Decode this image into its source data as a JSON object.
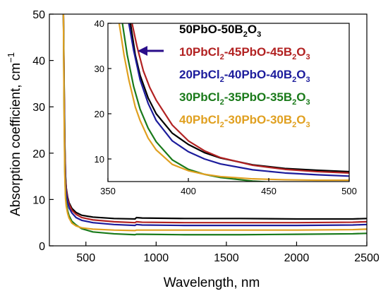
{
  "chart_data": [
    {
      "id": "main",
      "type": "line",
      "xlabel": "Wavelength, nm",
      "ylabel": "Absorption coefficient, cm",
      "ylabel_superscript": "−1",
      "xlim": [
        240,
        2500
      ],
      "ylim": [
        0,
        50
      ],
      "x_ticks": [
        500,
        1000,
        1500,
        2000,
        2500
      ],
      "x_tick_labels": [
        "500",
        "1000",
        "1500",
        "2000",
        "2500"
      ],
      "y_ticks": [
        0,
        10,
        20,
        30,
        40,
        50
      ],
      "y_tick_labels": [
        "0",
        "10",
        "20",
        "30",
        "40",
        "50"
      ],
      "grid": false,
      "series": [
        {
          "name": "50PbO-50B2O3",
          "color": "#000000",
          "x": [
            340,
            345,
            350,
            355,
            360,
            370,
            380,
            400,
            430,
            470,
            550,
            700,
            850,
            860,
            900,
            1200,
            1600,
            2000,
            2400,
            2500
          ],
          "y": [
            50,
            35,
            22,
            15,
            12.5,
            10.5,
            9.3,
            8.1,
            7.2,
            6.6,
            6.2,
            5.9,
            5.8,
            6.1,
            6.0,
            5.9,
            5.9,
            5.8,
            5.8,
            5.9
          ]
        },
        {
          "name": "10PbCl2-45PbO-45B2O3",
          "color": "#b22222",
          "x": [
            340,
            345,
            350,
            355,
            360,
            370,
            380,
            400,
            430,
            470,
            550,
            700,
            850,
            860,
            900,
            1200,
            1600,
            2000,
            2400,
            2500
          ],
          "y": [
            50,
            34,
            21,
            14.5,
            12.3,
            10.1,
            9.0,
            7.7,
            6.8,
            6.1,
            5.6,
            5.2,
            5.0,
            5.2,
            5.1,
            5.0,
            5.0,
            5.0,
            5.1,
            5.2
          ]
        },
        {
          "name": "20PbCl2-40PbO-40B2O3",
          "color": "#1c1c9c",
          "x": [
            340,
            345,
            350,
            355,
            360,
            370,
            380,
            400,
            430,
            470,
            550,
            700,
            850,
            860,
            900,
            1200,
            1600,
            2000,
            2400,
            2500
          ],
          "y": [
            50,
            32,
            19,
            13.3,
            11.5,
            9.4,
            8.2,
            7.1,
            6.1,
            5.5,
            5.0,
            4.6,
            4.4,
            4.6,
            4.5,
            4.4,
            4.4,
            4.4,
            4.5,
            4.6
          ]
        },
        {
          "name": "30PbCl2-35PbO-35B2O3",
          "color": "#1a7a1a",
          "x": [
            340,
            345,
            350,
            355,
            360,
            370,
            380,
            400,
            430,
            470,
            550,
            700,
            850,
            860,
            900,
            1200,
            1600,
            2000,
            2400,
            2500
          ],
          "y": [
            50,
            30,
            16,
            11,
            9.3,
            7.6,
            6.5,
            5.3,
            4.5,
            3.7,
            3.0,
            2.6,
            2.4,
            2.5,
            2.5,
            2.4,
            2.4,
            2.5,
            2.6,
            2.7
          ]
        },
        {
          "name": "40PbCl2-30PbO-30B2O3",
          "color": "#e0a020",
          "x": [
            340,
            345,
            350,
            355,
            360,
            370,
            380,
            400,
            430,
            470,
            550,
            700,
            850,
            860,
            900,
            1200,
            1600,
            2000,
            2400,
            2500
          ],
          "y": [
            50,
            28,
            15,
            10.2,
            8.6,
            7.0,
            6.0,
            4.9,
            4.3,
            3.9,
            3.6,
            3.4,
            3.3,
            3.4,
            3.4,
            3.4,
            3.4,
            3.4,
            3.5,
            3.6
          ]
        }
      ]
    },
    {
      "id": "inset",
      "type": "line",
      "xlabel": "",
      "ylabel": "",
      "xlim": [
        350,
        500
      ],
      "ylim": [
        5,
        40
      ],
      "x_ticks": [
        350,
        400,
        450,
        500
      ],
      "x_tick_labels": [
        "350",
        "400",
        "450",
        "500"
      ],
      "y_ticks": [
        10,
        20,
        30,
        40
      ],
      "y_tick_labels": [
        "10",
        "20",
        "30",
        "40"
      ],
      "grid": false,
      "series": [
        {
          "name": "50PbO-50B2O3",
          "color": "#000000",
          "x": [
            364,
            367,
            370,
            375,
            380,
            390,
            400,
            410,
            420,
            440,
            460,
            480,
            500
          ],
          "y": [
            40,
            33,
            28.5,
            23.5,
            20,
            15.7,
            13.2,
            11.4,
            10.2,
            8.7,
            7.9,
            7.5,
            7.2
          ]
        },
        {
          "name": "10PbCl2-45PbO-45B2O3",
          "color": "#b22222",
          "x": [
            365,
            368,
            372,
            376,
            380,
            390,
            400,
            410,
            420,
            440,
            460,
            480,
            500
          ],
          "y": [
            40,
            35,
            29.5,
            25.8,
            23,
            17.5,
            14,
            11.8,
            10.3,
            8.6,
            7.7,
            7.2,
            6.9
          ]
        },
        {
          "name": "20PbCl2-40PbO-40B2O3",
          "color": "#1c1c9c",
          "x": [
            363,
            366,
            370,
            375,
            380,
            390,
            400,
            410,
            420,
            440,
            460,
            480,
            500
          ],
          "y": [
            40,
            34,
            27.5,
            22.3,
            18.5,
            14,
            11.6,
            10,
            8.9,
            7.6,
            6.9,
            6.5,
            6.2
          ]
        },
        {
          "name": "30PbCl2-35PbO-35B2O3",
          "color": "#1a7a1a",
          "x": [
            359,
            362,
            366,
            370,
            375,
            380,
            390,
            400,
            410,
            420,
            440,
            460,
            480,
            500
          ],
          "y": [
            40,
            33,
            26,
            21,
            16.8,
            13.8,
            9.8,
            7.7,
            6.6,
            5.9,
            5.1,
            4.7,
            4.5,
            4.4
          ]
        },
        {
          "name": "40PbCl2-30PbO-30B2O3",
          "color": "#e0a020",
          "x": [
            357,
            360,
            363,
            367,
            370,
            375,
            380,
            390,
            400,
            410,
            420,
            440,
            460,
            480,
            500
          ],
          "y": [
            40,
            33,
            27.5,
            21.5,
            18.5,
            14.6,
            12,
            8.8,
            7.4,
            6.6,
            6.1,
            5.6,
            5.4,
            5.3,
            5.3
          ]
        }
      ]
    }
  ],
  "legend": {
    "placement": "top-right",
    "entries": [
      {
        "prefix": "50PbO-50B",
        "sub": "2",
        "suffix": "O",
        "sub2": "3",
        "color": "#000000",
        "parts": [
          [
            "50PbO-50B",
            false
          ],
          [
            "2",
            true
          ],
          [
            "O",
            false
          ],
          [
            "3",
            true
          ]
        ]
      },
      {
        "color": "#b22222",
        "parts": [
          [
            "10PbCl",
            false
          ],
          [
            "2",
            true
          ],
          [
            "-45PbO-45B",
            false
          ],
          [
            "2",
            true
          ],
          [
            "O",
            false
          ],
          [
            "3",
            true
          ]
        ]
      },
      {
        "color": "#1c1c9c",
        "parts": [
          [
            "20PbCl",
            false
          ],
          [
            "2",
            true
          ],
          [
            "-40PbO-40B",
            false
          ],
          [
            "2",
            true
          ],
          [
            "O",
            false
          ],
          [
            "3",
            true
          ]
        ]
      },
      {
        "color": "#1a7a1a",
        "parts": [
          [
            "30PbCl",
            false
          ],
          [
            "2",
            true
          ],
          [
            "-35PbO-35B",
            false
          ],
          [
            "2",
            true
          ],
          [
            "O",
            false
          ],
          [
            "3",
            true
          ]
        ]
      },
      {
        "color": "#e0a020",
        "parts": [
          [
            "40PbCl",
            false
          ],
          [
            "2",
            true
          ],
          [
            "-30PbO-30B",
            false
          ],
          [
            "2",
            true
          ],
          [
            "O",
            false
          ],
          [
            "3",
            true
          ]
        ]
      }
    ]
  },
  "annotation": {
    "arrow_color": "#2a0d8a",
    "arrow_direction": "left"
  }
}
